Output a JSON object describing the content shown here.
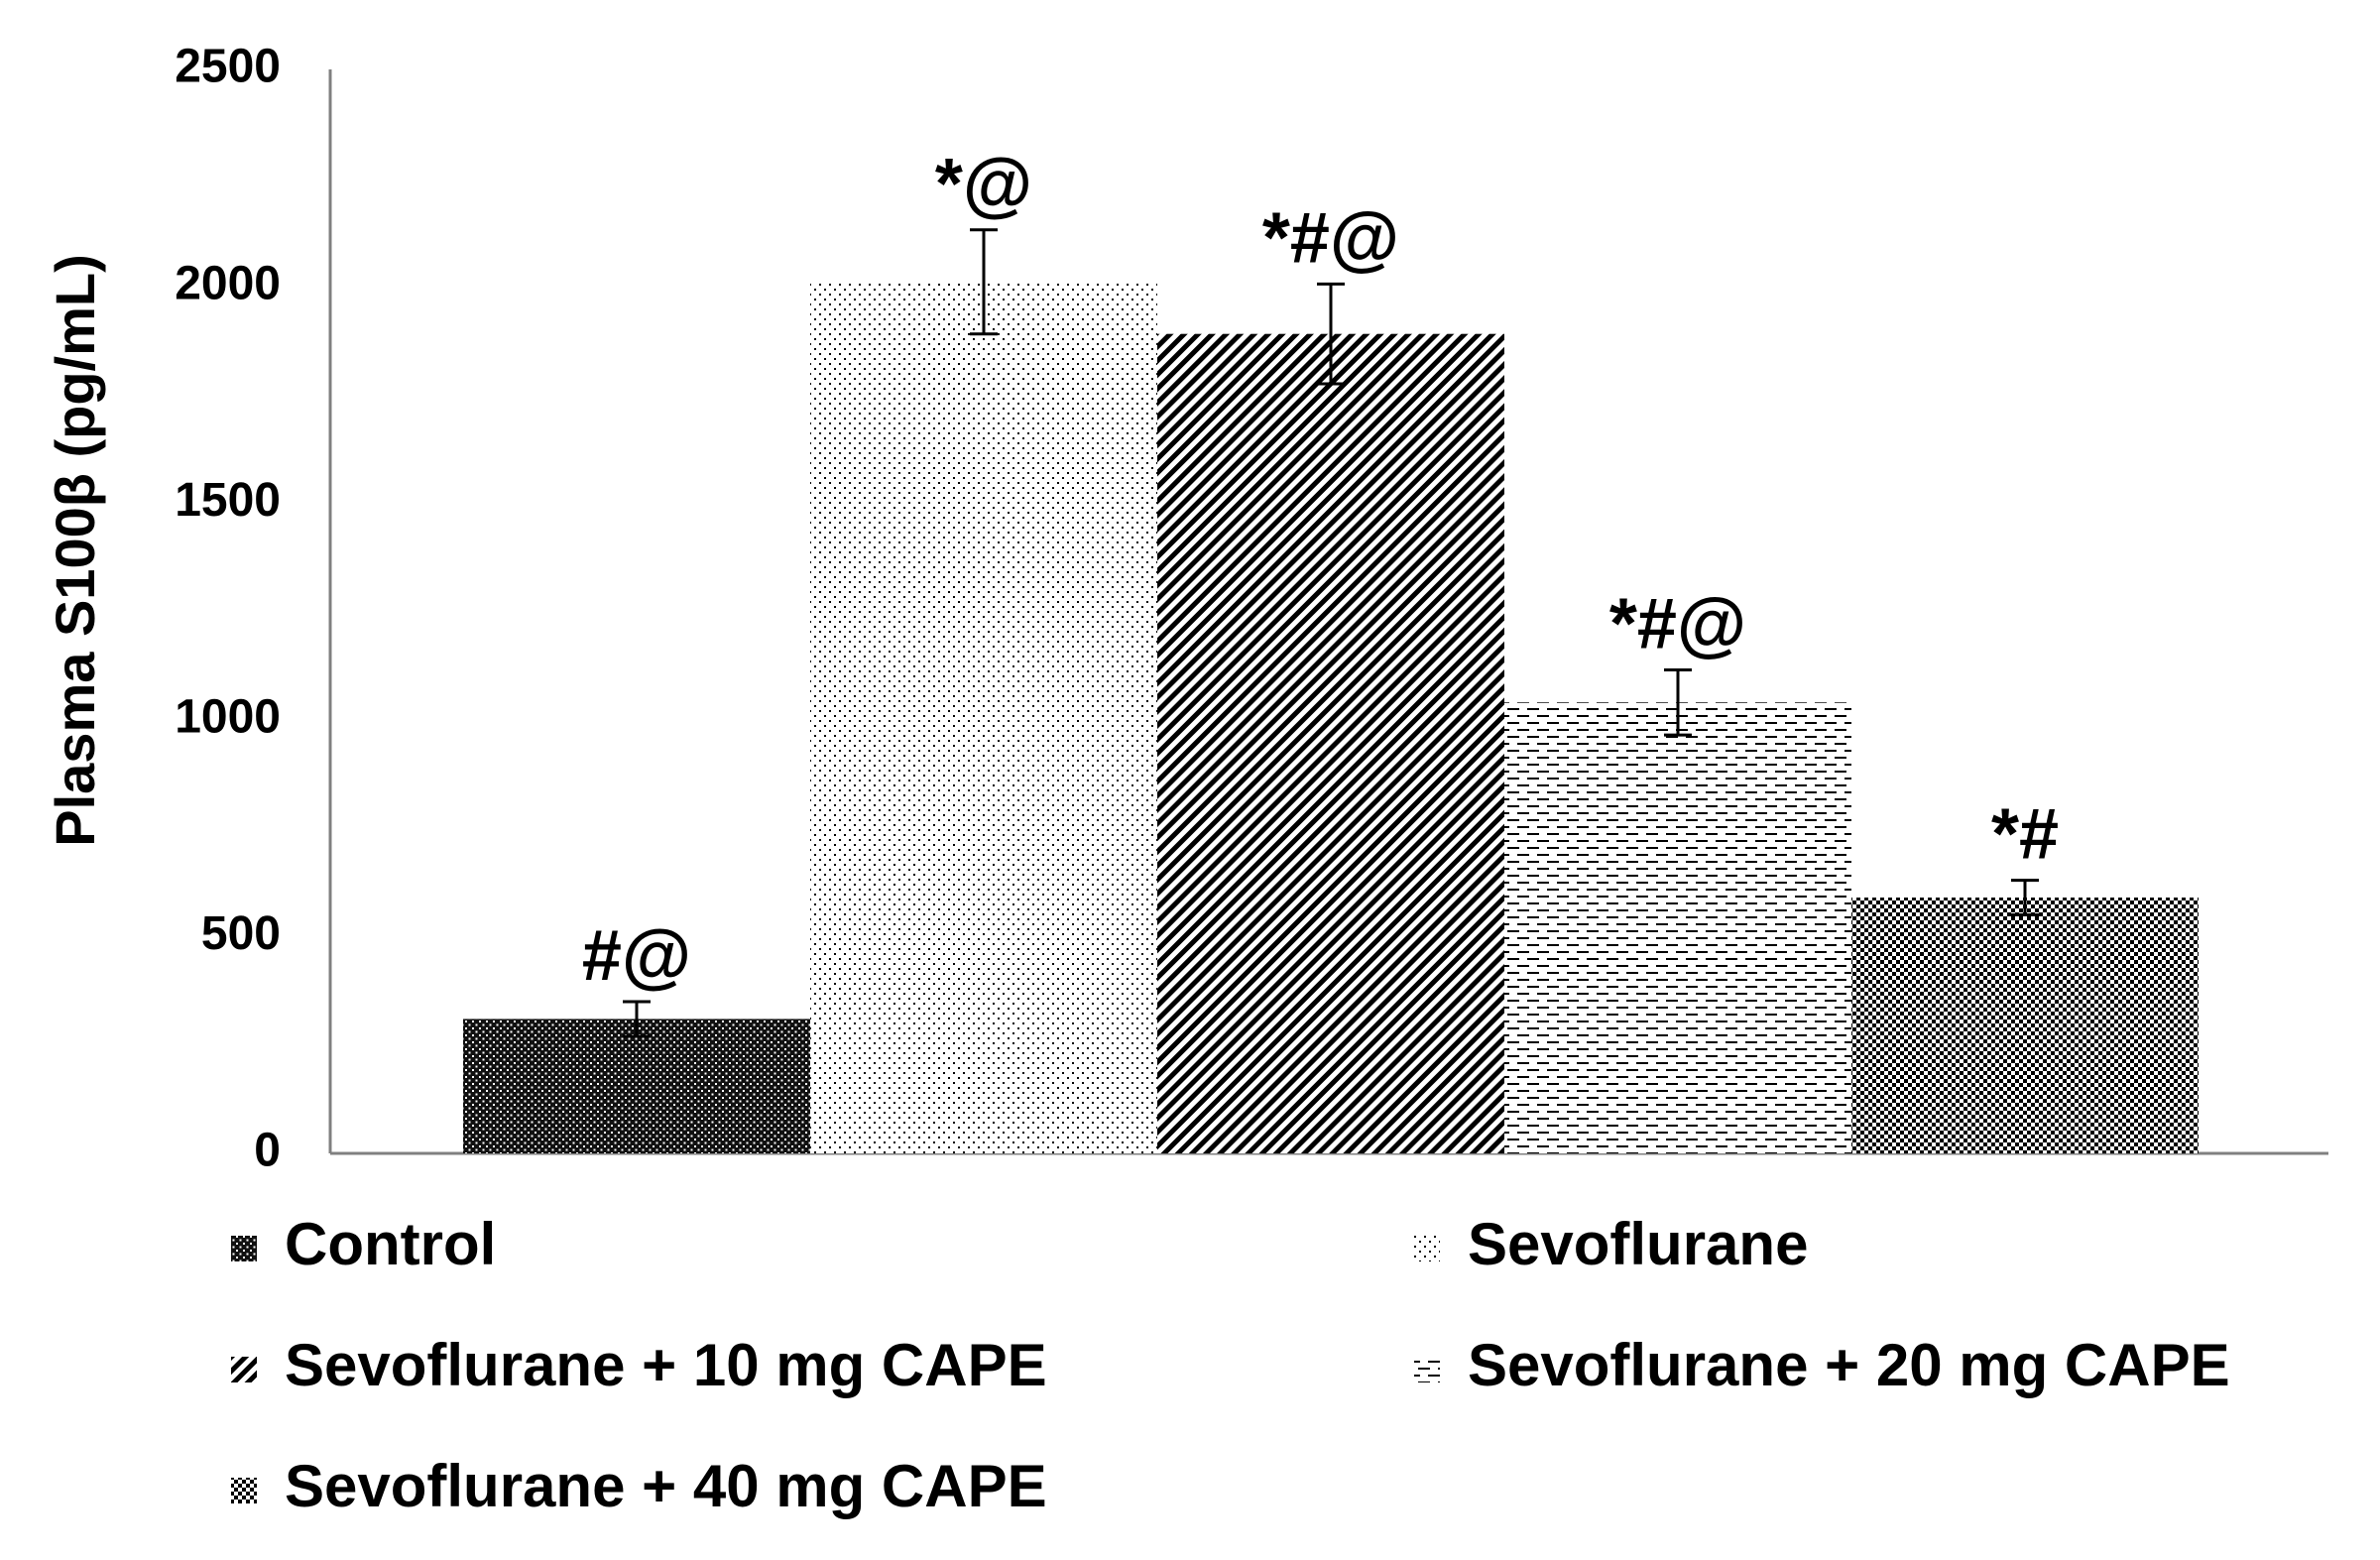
{
  "chart_data": {
    "type": "bar",
    "title": "",
    "xlabel": "",
    "ylabel": "Plasma S100β (pg/mL)",
    "ylim": [
      0,
      2500
    ],
    "yticks": [
      0,
      500,
      1000,
      1500,
      2000,
      2500
    ],
    "grid": false,
    "legend_position": "bottom",
    "series": [
      {
        "name": "Control",
        "value": 310,
        "error": 40,
        "significance": "#@",
        "pattern": "dense-dots"
      },
      {
        "name": "Sevoflurane",
        "value": 2010,
        "error": 120,
        "significance": "*@",
        "pattern": "sparse-dots"
      },
      {
        "name": "Sevoflurane + 10 mg CAPE",
        "value": 1890,
        "error": 115,
        "significance": "*#@",
        "pattern": "diagonal-lines"
      },
      {
        "name": "Sevoflurane + 20 mg CAPE",
        "value": 1040,
        "error": 75,
        "significance": "*#@",
        "pattern": "horizontal-dashes"
      },
      {
        "name": "Sevoflurane + 40 mg CAPE",
        "value": 590,
        "error": 40,
        "significance": "*#",
        "pattern": "checker"
      }
    ],
    "colors": {
      "bar_ink": "#000000",
      "background": "#ffffff"
    }
  }
}
